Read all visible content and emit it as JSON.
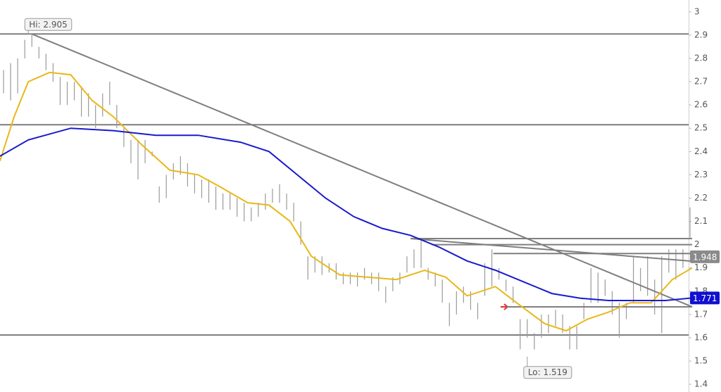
{
  "chart_data": {
    "type": "range-bar",
    "bar_color": "#9a9a9a",
    "xlim": [
      -0.5,
      96.8
    ],
    "ylim": [
      1.367,
      3.051
    ],
    "yticks": [
      3,
      2.9,
      2.8,
      2.7,
      2.6,
      2.5,
      2.4,
      2.3,
      2.2,
      2.1,
      2,
      1.9,
      1.8,
      1.7,
      1.6,
      1.5,
      1.4
    ],
    "high": [
      2.75,
      2.78,
      2.8,
      2.88,
      2.9,
      2.85,
      2.82,
      2.78,
      2.72,
      2.7,
      2.7,
      2.68,
      2.65,
      2.6,
      2.65,
      2.7,
      2.6,
      2.5,
      2.45,
      2.45,
      2.45,
      2.4,
      2.25,
      2.3,
      2.35,
      2.38,
      2.35,
      2.3,
      2.28,
      2.28,
      2.25,
      2.22,
      2.22,
      2.2,
      2.18,
      2.16,
      2.18,
      2.22,
      2.24,
      2.26,
      2.22,
      2.18,
      2.1,
      1.95,
      1.95,
      1.95,
      1.92,
      1.92,
      1.88,
      1.88,
      1.88,
      1.9,
      1.88,
      1.88,
      1.82,
      1.86,
      1.88,
      1.95,
      1.98,
      2.02,
      1.9,
      1.88,
      1.85,
      1.75,
      1.8,
      1.82,
      1.8,
      1.75,
      1.92,
      1.98,
      1.9,
      1.85,
      1.82,
      1.68,
      1.68,
      1.62,
      1.7,
      1.7,
      1.72,
      1.7,
      1.65,
      1.65,
      1.75,
      1.9,
      1.88,
      1.85,
      1.8,
      1.75,
      1.75,
      1.95,
      1.9,
      1.95,
      1.85,
      1.95,
      1.98,
      1.98,
      1.98,
      2.16
    ],
    "low": [
      2.65,
      2.62,
      2.65,
      2.8,
      2.85,
      2.8,
      2.75,
      2.7,
      2.6,
      2.6,
      2.62,
      2.55,
      2.55,
      2.5,
      2.55,
      2.6,
      2.5,
      2.42,
      2.35,
      2.28,
      2.35,
      2.38,
      2.18,
      2.2,
      2.28,
      2.3,
      2.25,
      2.22,
      2.2,
      2.18,
      2.15,
      2.15,
      2.15,
      2.12,
      2.1,
      2.1,
      2.12,
      2.15,
      2.18,
      2.18,
      2.15,
      2.1,
      2.0,
      1.85,
      1.88,
      1.87,
      1.88,
      1.85,
      1.83,
      1.83,
      1.82,
      1.85,
      1.83,
      1.8,
      1.75,
      1.8,
      1.83,
      1.88,
      1.9,
      1.9,
      1.85,
      1.82,
      1.75,
      1.65,
      1.7,
      1.75,
      1.72,
      1.68,
      1.78,
      1.82,
      1.85,
      1.8,
      1.75,
      1.55,
      1.6,
      1.55,
      1.6,
      1.62,
      1.65,
      1.62,
      1.55,
      1.55,
      1.68,
      1.75,
      1.75,
      1.78,
      1.7,
      1.6,
      1.68,
      1.75,
      1.8,
      1.78,
      1.7,
      1.62,
      1.88,
      1.85,
      1.9,
      2.03
    ],
    "lines": [
      {
        "color": "#e8b818",
        "x": [
          -0.5,
          1.5,
          3.5,
          6.5,
          9.5,
          12.5,
          15.5,
          19.5,
          23.5,
          27.5,
          30.5,
          34.5,
          37.5,
          40.5,
          43.5,
          47.5,
          51.5,
          55.5,
          59.5,
          62.5,
          65.5,
          69.5,
          72.5,
          76.5,
          79.5,
          82.5,
          85.5,
          88.5,
          91.5,
          94.5,
          97.3
        ],
        "values": [
          2.36,
          2.55,
          2.7,
          2.74,
          2.73,
          2.62,
          2.55,
          2.43,
          2.32,
          2.3,
          2.25,
          2.18,
          2.17,
          2.1,
          1.95,
          1.87,
          1.86,
          1.85,
          1.89,
          1.86,
          1.78,
          1.82,
          1.75,
          1.66,
          1.63,
          1.68,
          1.71,
          1.75,
          1.75,
          1.85,
          1.9
        ]
      },
      {
        "color": "#1a1acc",
        "x": [
          -0.5,
          3.5,
          9.5,
          15.5,
          21.5,
          27.5,
          33.5,
          37.5,
          41.5,
          45.5,
          49.5,
          53.5,
          57.5,
          61.5,
          65.5,
          69.5,
          73.5,
          77.5,
          81.5,
          85.5,
          89.5,
          93.5,
          97.3
        ],
        "values": [
          2.38,
          2.45,
          2.5,
          2.49,
          2.47,
          2.47,
          2.44,
          2.4,
          2.3,
          2.2,
          2.12,
          2.07,
          2.04,
          1.99,
          1.93,
          1.89,
          1.84,
          1.79,
          1.77,
          1.76,
          1.76,
          1.76,
          1.771
        ]
      }
    ],
    "line_color": "#7f7f7f",
    "hlines": [
      2.905,
      2.515,
      1.612
    ],
    "segments": [
      {
        "x": [
          57.5,
          97.3
        ],
        "y": [
          2.026,
          2.026
        ]
      },
      {
        "x": [
          60.5,
          97.3
        ],
        "y": [
          2.0,
          2.0
        ]
      },
      {
        "x": [
          69.2,
          97.3
        ],
        "y": [
          1.962,
          1.962
        ]
      },
      {
        "x": [
          71.0,
          97.3
        ],
        "y": [
          1.733,
          1.733
        ]
      },
      {
        "x": [
          4.0,
          97.3
        ],
        "y": [
          2.905,
          1.733
        ]
      },
      {
        "x": [
          57.5,
          97.3
        ],
        "y": [
          2.026,
          1.929
        ]
      }
    ],
    "annotations": [
      {
        "text": "Hi: 2.905",
        "x": 3.5,
        "value": 2.905
      },
      {
        "text": "Lo: 1.519",
        "x": 74.0,
        "value": 1.519
      }
    ],
    "price_labels": [
      {
        "label": "1.948",
        "value": 1.948,
        "color": "#8a8a8a"
      },
      {
        "label": "1.771",
        "value": 1.771,
        "color": "#1010d0"
      }
    ]
  }
}
